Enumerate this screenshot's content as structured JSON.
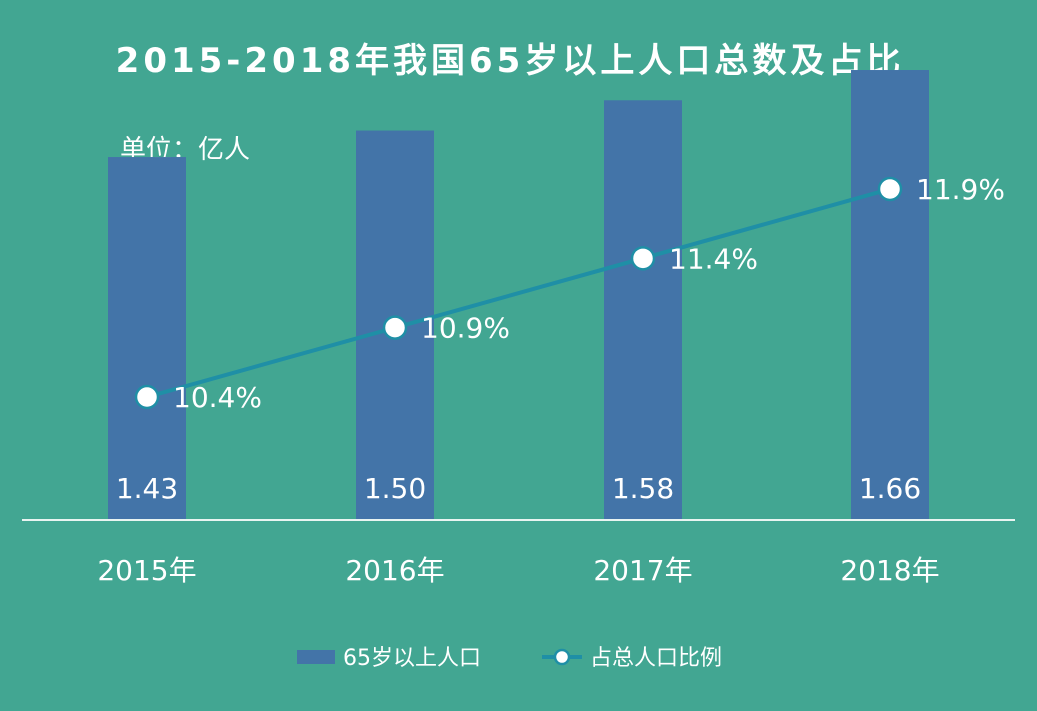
{
  "chart_data": {
    "type": "bar",
    "title": "2015-2018年我国65岁以上人口总数及占比",
    "unit_label": "单位：亿人",
    "categories": [
      "2015年",
      "2016年",
      "2017年",
      "2018年"
    ],
    "series": [
      {
        "name": "65岁以上人口",
        "kind": "bar",
        "values": [
          1.43,
          1.5,
          1.58,
          1.66
        ],
        "value_labels": [
          "1.43",
          "1.50",
          "1.58",
          "1.66"
        ]
      },
      {
        "name": "占总人口比例",
        "kind": "line",
        "values": [
          10.4,
          10.9,
          11.4,
          11.9
        ],
        "value_labels": [
          "10.4%",
          "10.9%",
          "11.4%",
          "11.9%"
        ]
      }
    ],
    "legend_position": "bottom",
    "grid": false
  },
  "colors": {
    "background": "#42a692",
    "bar": "#4374a8",
    "line": "#1f8fa6",
    "marker": "#ffffff",
    "axis": "#e8f4f1",
    "text": "#ffffff"
  }
}
